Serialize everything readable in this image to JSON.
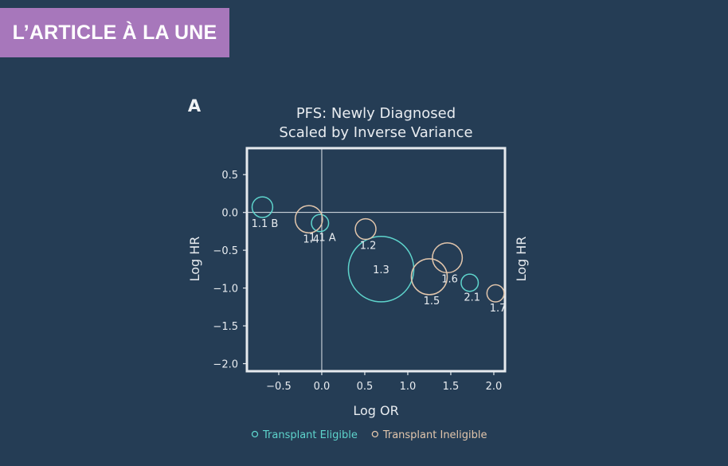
{
  "banner": {
    "label": "L’ARTICLE À LA UNE"
  },
  "colors": {
    "background": "#253d55",
    "banner": "#a777bb",
    "eligible": "#5ed4cc",
    "ineligible": "#e2c6ac",
    "frame": "#e6eaee"
  },
  "chart_data": {
    "type": "scatter",
    "panel_label": "A",
    "title": "PFS: Newly Diagnosed",
    "subtitle": "Scaled by Inverse Variance",
    "xlabel": "Log OR",
    "ylabel": "Log HR",
    "ylabel_right": "Log HR",
    "xlim": [
      -0.87,
      2.13
    ],
    "ylim": [
      -2.1,
      0.85
    ],
    "xticks": [
      -0.5,
      0.0,
      0.5,
      1.0,
      1.5,
      2.0
    ],
    "xtick_labels": [
      "−0.5",
      "0.0",
      "0.5",
      "1.0",
      "1.5",
      "2.0"
    ],
    "yticks": [
      0.5,
      0.0,
      -0.5,
      -1.0,
      -1.5,
      -2.0
    ],
    "ytick_labels": [
      "0.5",
      "0.0",
      "−0.5",
      "−1.0",
      "−1.5",
      "−2.0"
    ],
    "reference_lines": {
      "x": 0.0,
      "y": 0.0
    },
    "grid": false,
    "legend_position": "bottom",
    "series": [
      {
        "name": "Transplant Eligible",
        "color": "#5ed4cc",
        "points": [
          {
            "label": "1.1 B",
            "x": -0.69,
            "y": 0.07,
            "weight": 0.7
          },
          {
            "label": "1.1 A",
            "x": -0.02,
            "y": -0.14,
            "weight": 0.4
          },
          {
            "label": "1.3",
            "x": 0.69,
            "y": -0.75,
            "weight": 12
          },
          {
            "label": "2.1",
            "x": 1.72,
            "y": -0.93,
            "weight": 0.4
          }
        ]
      },
      {
        "name": "Transplant Ineligible",
        "color": "#e2c6ac",
        "points": [
          {
            "label": "1.4",
            "x": -0.15,
            "y": -0.09,
            "weight": 1.5
          },
          {
            "label": "1.2",
            "x": 0.51,
            "y": -0.22,
            "weight": 0.7
          },
          {
            "label": "1.6",
            "x": 1.46,
            "y": -0.6,
            "weight": 1.9
          },
          {
            "label": "1.5",
            "x": 1.25,
            "y": -0.85,
            "weight": 3
          },
          {
            "label": "1.7",
            "x": 2.02,
            "y": -1.07,
            "weight": 0.4
          }
        ]
      }
    ]
  }
}
